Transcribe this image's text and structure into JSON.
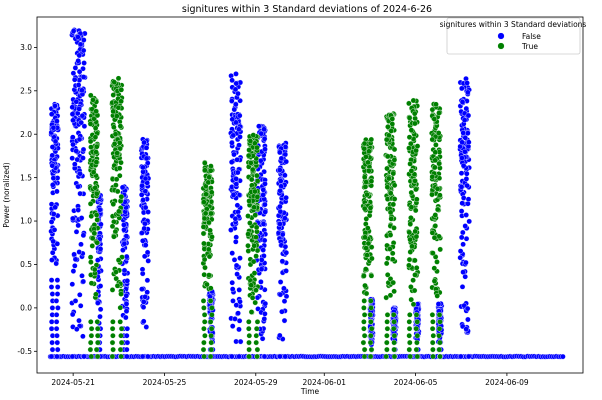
{
  "chart_data": {
    "type": "scatter",
    "title": "signitures within 3 Standard deviations of 2024-6-26",
    "xlabel": "Time",
    "ylabel": "Power (noralized)",
    "xlim": [
      "2024-05-19T10:00",
      "2024-06-12T08:00"
    ],
    "ylim": [
      -0.75,
      3.35
    ],
    "x_ticks": [
      "2024-05-21",
      "2024-05-25",
      "2024-05-29",
      "2024-06-01",
      "2024-06-05",
      "2024-06-09"
    ],
    "y_ticks": [
      -0.5,
      0.0,
      0.5,
      1.0,
      1.5,
      2.0,
      2.5,
      3.0
    ],
    "grid": false,
    "baseline": -0.56,
    "baseline_range": [
      "2024-05-20T00:00",
      "2024-06-11T12:00"
    ],
    "legend": {
      "title": "signitures within 3 Standard deviations",
      "placement": "top-right",
      "entries": [
        {
          "label": "False",
          "color": "#0000ff"
        },
        {
          "label": "True",
          "color": "#008000"
        }
      ]
    },
    "series": [
      {
        "name": "False",
        "color": "#0000ff",
        "peaks": [
          {
            "start": "2024-05-20T01:00",
            "end": "2024-05-20T08:00",
            "low": 0.4,
            "high": 2.35
          },
          {
            "start": "2024-05-20T23:00",
            "end": "2024-05-21T12:00",
            "low": -0.5,
            "high": 3.25
          },
          {
            "start": "2024-05-22T02:00",
            "end": "2024-05-22T05:00",
            "low": -0.2,
            "high": 1.3
          },
          {
            "start": "2024-05-23T04:00",
            "end": "2024-05-23T09:00",
            "low": -0.2,
            "high": 1.4
          },
          {
            "start": "2024-05-24T00:00",
            "end": "2024-05-24T07:00",
            "low": -0.5,
            "high": 1.95
          },
          {
            "start": "2024-05-26T23:00",
            "end": "2024-05-27T03:00",
            "low": -0.4,
            "high": 0.2
          },
          {
            "start": "2024-05-27T22:00",
            "end": "2024-05-28T08:00",
            "low": -0.5,
            "high": 2.7
          },
          {
            "start": "2024-05-29T01:00",
            "end": "2024-05-29T10:00",
            "low": -0.5,
            "high": 2.1
          },
          {
            "start": "2024-05-30T00:00",
            "end": "2024-05-30T08:00",
            "low": -0.5,
            "high": 1.9
          },
          {
            "start": "2024-06-03T00:00",
            "end": "2024-06-03T03:00",
            "low": -0.5,
            "high": 0.1
          },
          {
            "start": "2024-06-04T00:00",
            "end": "2024-06-04T03:00",
            "low": -0.4,
            "high": 0.0
          },
          {
            "start": "2024-06-05T00:00",
            "end": "2024-06-05T03:00",
            "low": -0.4,
            "high": 0.05
          },
          {
            "start": "2024-06-06T00:00",
            "end": "2024-06-06T03:00",
            "low": -0.4,
            "high": 0.05
          },
          {
            "start": "2024-06-06T23:00",
            "end": "2024-06-07T08:00",
            "low": -0.5,
            "high": 2.65
          }
        ]
      },
      {
        "name": "True",
        "color": "#008000",
        "peaks": [
          {
            "start": "2024-05-21T18:00",
            "end": "2024-05-22T02:00",
            "low": -0.1,
            "high": 2.45
          },
          {
            "start": "2024-05-22T17:00",
            "end": "2024-05-23T03:00",
            "low": -0.1,
            "high": 2.65
          },
          {
            "start": "2024-05-26T17:00",
            "end": "2024-05-27T02:00",
            "low": 0.1,
            "high": 1.7
          },
          {
            "start": "2024-05-28T16:00",
            "end": "2024-05-29T02:00",
            "low": -0.1,
            "high": 2.0
          },
          {
            "start": "2024-06-02T17:00",
            "end": "2024-06-03T02:00",
            "low": 0.1,
            "high": 1.95
          },
          {
            "start": "2024-06-03T17:00",
            "end": "2024-06-04T02:00",
            "low": 0.0,
            "high": 2.25
          },
          {
            "start": "2024-06-04T17:00",
            "end": "2024-06-05T02:00",
            "low": 0.0,
            "high": 2.4
          },
          {
            "start": "2024-06-05T17:00",
            "end": "2024-06-06T02:00",
            "low": 0.0,
            "high": 2.35
          }
        ]
      }
    ]
  }
}
